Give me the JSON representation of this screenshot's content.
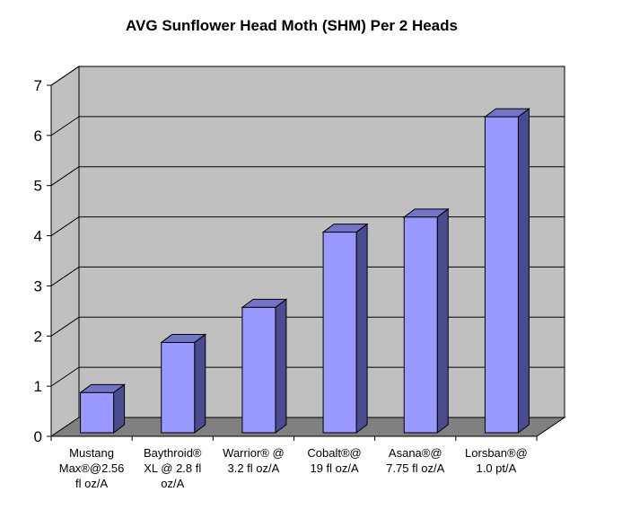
{
  "chart_data": {
    "type": "bar",
    "title": "AVG Sunflower Head Moth (SHM) Per 2 Heads",
    "xlabel": "",
    "ylabel": "",
    "ylim": [
      0,
      7
    ],
    "yticks": [
      "0",
      "1",
      "2",
      "3",
      "4",
      "5",
      "6",
      "7"
    ],
    "grid": true,
    "legend": "none",
    "categories": [
      [
        "Mustang",
        "Max®@2.56",
        "fl oz/A"
      ],
      [
        "Baythroid®",
        "XL @ 2.8 fl",
        "oz/A"
      ],
      [
        "Warrior® @",
        "3.2 fl oz/A"
      ],
      [
        "Cobalt®@",
        "19 fl oz/A"
      ],
      [
        "Asana®@",
        "7.75 fl oz/A"
      ],
      [
        "Lorsban®@",
        "1.0 pt/A"
      ]
    ],
    "values": [
      0.8,
      1.8,
      2.5,
      4.0,
      4.3,
      6.3
    ],
    "colors": {
      "bar_front": "#9999ff",
      "bar_top": "#7474c6",
      "bar_side": "#4b4b90",
      "wall": "#c0c0c0",
      "floor": "#808080",
      "grid": "#000000"
    }
  }
}
